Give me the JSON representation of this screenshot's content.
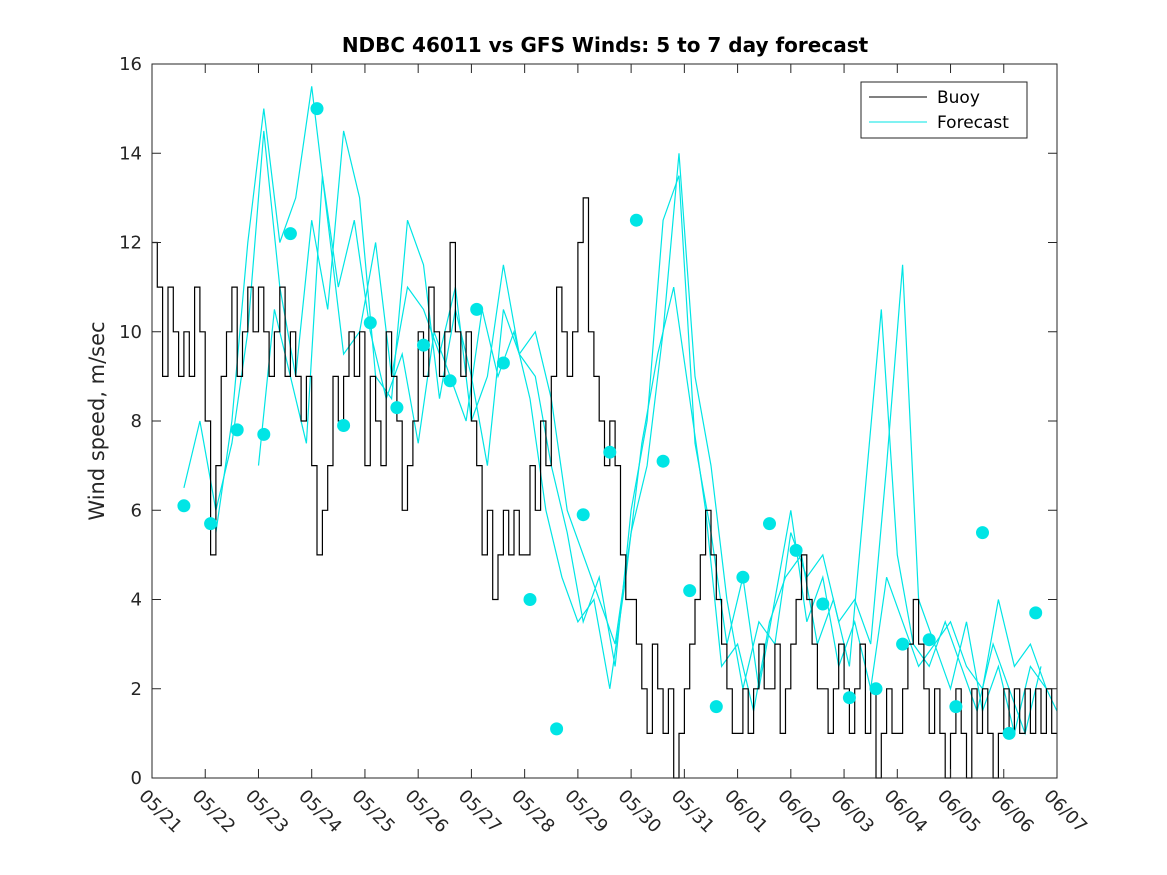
{
  "chart_data": {
    "type": "line",
    "title": "NDBC 46011 vs GFS Winds: 5 to 7 day forecast",
    "xlabel": "",
    "ylabel": "Wind speed, m/sec",
    "xlim": [
      "05/21",
      "06/07"
    ],
    "ylim": [
      0,
      16
    ],
    "yticks": [
      "0",
      "2",
      "4",
      "6",
      "8",
      "10",
      "12",
      "14",
      "16"
    ],
    "xticks": [
      "05/21",
      "05/22",
      "05/23",
      "05/24",
      "05/25",
      "05/26",
      "05/27",
      "05/28",
      "05/29",
      "05/30",
      "05/31",
      "06/01",
      "06/02",
      "06/03",
      "06/04",
      "06/05",
      "06/06",
      "06/07"
    ],
    "grid": false,
    "legend": {
      "position": "top-right",
      "entries": [
        "Buoy",
        "Forecast"
      ]
    },
    "colors": {
      "buoy": "#000000",
      "forecast": "#00e5e5"
    },
    "series": [
      {
        "name": "Buoy",
        "x": [
          0.0,
          0.1,
          0.2,
          0.3,
          0.4,
          0.5,
          0.6,
          0.7,
          0.8,
          0.9,
          1.0,
          1.1,
          1.2,
          1.3,
          1.4,
          1.5,
          1.6,
          1.7,
          1.8,
          1.9,
          2.0,
          2.1,
          2.2,
          2.3,
          2.4,
          2.5,
          2.6,
          2.7,
          2.8,
          2.9,
          3.0,
          3.1,
          3.2,
          3.3,
          3.4,
          3.5,
          3.6,
          3.7,
          3.8,
          3.9,
          4.0,
          4.1,
          4.2,
          4.3,
          4.4,
          4.5,
          4.6,
          4.7,
          4.8,
          4.9,
          5.0,
          5.1,
          5.2,
          5.3,
          5.4,
          5.5,
          5.6,
          5.7,
          5.8,
          5.9,
          6.0,
          6.1,
          6.2,
          6.3,
          6.4,
          6.5,
          6.6,
          6.7,
          6.8,
          6.9,
          7.0,
          7.1,
          7.2,
          7.3,
          7.4,
          7.5,
          7.6,
          7.7,
          7.8,
          7.9,
          8.0,
          8.1,
          8.2,
          8.3,
          8.4,
          8.5,
          8.6,
          8.7,
          8.8,
          8.9,
          9.0,
          9.1,
          9.2,
          9.3,
          9.4,
          9.5,
          9.6,
          9.7,
          9.8,
          9.9,
          10.0,
          10.1,
          10.2,
          10.3,
          10.4,
          10.5,
          10.6,
          10.7,
          10.8,
          10.9,
          11.0,
          11.1,
          11.2,
          11.3,
          11.4,
          11.5,
          11.6,
          11.7,
          11.8,
          11.9,
          12.0,
          12.1,
          12.2,
          12.3,
          12.4,
          12.5,
          12.6,
          12.7,
          12.8,
          12.9,
          13.0,
          13.1,
          13.2,
          13.3,
          13.4,
          13.5,
          13.6,
          13.7,
          13.8,
          13.9,
          14.0,
          14.1,
          14.2,
          14.3,
          14.4,
          14.5,
          14.6,
          14.7,
          14.8,
          14.9,
          15.0,
          15.1,
          15.2,
          15.3,
          15.4,
          15.5,
          15.6,
          15.7,
          15.8,
          15.9,
          16.0,
          16.1,
          16.2,
          16.3,
          16.4,
          16.5,
          16.6,
          16.7,
          16.8,
          16.9,
          17.0
        ],
        "y": [
          12,
          11,
          9,
          11,
          10,
          9,
          10,
          9,
          11,
          10,
          8,
          5,
          7,
          9,
          10,
          11,
          9,
          10,
          11,
          10,
          11,
          10,
          9,
          10,
          11,
          9,
          10,
          9,
          8,
          9,
          7,
          5,
          6,
          7,
          9,
          8,
          9,
          10,
          9,
          10,
          7,
          9,
          8,
          7,
          10,
          9,
          8,
          6,
          7,
          8,
          10,
          9,
          11,
          10,
          9,
          10,
          12,
          10,
          9,
          10,
          8,
          7,
          5,
          6,
          4,
          5,
          6,
          5,
          6,
          5,
          5,
          7,
          6,
          8,
          7,
          9,
          11,
          10,
          9,
          10,
          12,
          13,
          10,
          9,
          8,
          7,
          8,
          7,
          5,
          4,
          4,
          3,
          2,
          1,
          3,
          2,
          1,
          2,
          0,
          1,
          2,
          3,
          4,
          5,
          6,
          5,
          4,
          3,
          2,
          1,
          1,
          2,
          1,
          2,
          3,
          2,
          2,
          3,
          1,
          2,
          3,
          4,
          5,
          4,
          3,
          2,
          2,
          1,
          2,
          3,
          2,
          1,
          2,
          3,
          1,
          2,
          0,
          1,
          2,
          1,
          1,
          2,
          3,
          4,
          3,
          2,
          1,
          2,
          1,
          0,
          1,
          2,
          1,
          0,
          2,
          1,
          2,
          1,
          0,
          1,
          2,
          1,
          2,
          1,
          2,
          1,
          2,
          1,
          2,
          1,
          1
        ]
      },
      {
        "name": "Forecast",
        "x": [
          0.6,
          0.9,
          1.2,
          1.5,
          1.8,
          2.1,
          2.4,
          2.7,
          3.0,
          3.3,
          3.6,
          3.9,
          4.2,
          4.5,
          4.8,
          5.1,
          5.4,
          5.7,
          6.0,
          6.3,
          6.6,
          6.9,
          7.2,
          7.5,
          7.8,
          8.1,
          8.4,
          8.7,
          9.0,
          9.3,
          9.6,
          9.9,
          10.2,
          10.5,
          10.8,
          11.1,
          11.4,
          11.7,
          12.0,
          12.3,
          12.6,
          12.9,
          13.2,
          13.5,
          13.8,
          14.1,
          14.4,
          14.7,
          15.0,
          15.3,
          15.6,
          15.9,
          16.2,
          16.5,
          16.8,
          17.0
        ],
        "y": [
          6.5,
          8.0,
          6.0,
          7.5,
          10.0,
          14.5,
          11.0,
          9.0,
          12.5,
          10.5,
          14.5,
          13.0,
          9.0,
          8.5,
          12.5,
          11.5,
          8.5,
          10.5,
          9.0,
          7.0,
          10.5,
          9.5,
          10.0,
          8.5,
          6.0,
          5.0,
          4.0,
          3.0,
          5.5,
          7.0,
          10.0,
          14.0,
          9.0,
          7.0,
          4.0,
          2.0,
          3.5,
          3.0,
          5.5,
          4.5,
          5.0,
          3.5,
          4.0,
          3.0,
          7.0,
          11.5,
          4.0,
          3.0,
          3.5,
          2.5,
          2.0,
          4.0,
          2.5,
          3.0,
          2.0,
          1.5
        ]
      },
      {
        "name": "Forecast",
        "x": [
          1.2,
          1.5,
          1.8,
          2.1,
          2.4,
          2.7,
          3.0,
          3.3,
          3.6,
          3.9,
          4.2,
          4.5,
          4.8,
          5.1,
          5.4,
          5.7,
          6.0,
          6.3,
          6.6,
          6.9,
          7.2,
          7.5,
          7.8,
          8.1,
          8.4,
          8.7,
          9.0,
          9.3,
          9.6,
          9.9,
          10.2,
          10.5,
          10.8,
          11.1,
          11.4,
          11.7,
          12.0,
          12.3,
          12.6,
          12.9,
          13.2,
          13.5,
          13.8,
          14.1,
          14.4,
          14.7,
          15.0,
          15.3,
          15.6,
          15.9,
          16.2,
          16.5,
          16.8
        ],
        "y": [
          5.5,
          8.0,
          12.0,
          15.0,
          12.0,
          13.0,
          15.5,
          12.5,
          9.5,
          10.0,
          12.0,
          9.0,
          11.0,
          10.5,
          9.5,
          11.0,
          8.0,
          9.0,
          11.5,
          9.5,
          9.0,
          7.0,
          5.5,
          3.5,
          4.5,
          2.5,
          6.0,
          8.0,
          12.5,
          13.5,
          7.5,
          5.5,
          3.0,
          4.5,
          2.0,
          4.0,
          6.0,
          3.5,
          4.5,
          2.5,
          3.5,
          2.0,
          4.5,
          3.5,
          2.5,
          3.0,
          2.0,
          3.5,
          1.5,
          2.5,
          1.0,
          2.5,
          2.0
        ]
      },
      {
        "name": "Forecast",
        "x": [
          2.0,
          2.3,
          2.6,
          2.9,
          3.2,
          3.5,
          3.8,
          4.1,
          4.4,
          4.7,
          5.0,
          5.3,
          5.6,
          5.9,
          6.2,
          6.5,
          6.8,
          7.1,
          7.4,
          7.7,
          8.0,
          8.3,
          8.6,
          8.9,
          9.2,
          9.5,
          9.8,
          10.1,
          10.4,
          10.7,
          11.0,
          11.3,
          11.6,
          11.9,
          12.2,
          12.5,
          12.8,
          13.1,
          13.4,
          13.7,
          14.0,
          14.3,
          14.6,
          14.9,
          15.2,
          15.5,
          15.8,
          16.1,
          16.4,
          16.7
        ],
        "y": [
          7.0,
          10.5,
          9.0,
          7.5,
          13.5,
          11.0,
          12.5,
          10.0,
          8.5,
          9.5,
          7.5,
          10.0,
          9.0,
          8.0,
          10.5,
          9.0,
          10.0,
          8.5,
          6.0,
          4.5,
          3.5,
          4.0,
          2.0,
          4.5,
          7.5,
          9.5,
          11.0,
          8.5,
          6.0,
          2.5,
          3.0,
          1.5,
          3.5,
          4.5,
          5.0,
          3.0,
          4.0,
          2.5,
          6.5,
          10.5,
          5.0,
          3.0,
          2.5,
          3.5,
          2.5,
          1.5,
          3.0,
          2.0,
          1.0,
          2.5
        ]
      }
    ],
    "markers": {
      "x": [
        0.6,
        1.1,
        1.6,
        2.1,
        2.6,
        3.1,
        3.6,
        4.1,
        4.6,
        5.1,
        5.6,
        6.1,
        6.6,
        7.1,
        7.6,
        8.1,
        8.6,
        9.1,
        9.6,
        10.1,
        10.6,
        11.1,
        11.6,
        12.1,
        12.6,
        13.1,
        13.6,
        14.1,
        14.6,
        15.1,
        15.6,
        16.1,
        16.6
      ],
      "y": [
        6.1,
        5.7,
        7.8,
        7.7,
        12.2,
        15.0,
        7.9,
        10.2,
        8.3,
        9.7,
        8.9,
        10.5,
        9.3,
        4.0,
        1.1,
        5.9,
        7.3,
        12.5,
        7.1,
        4.2,
        1.6,
        4.5,
        5.7,
        5.1,
        3.9,
        1.8,
        2.0,
        3.0,
        3.1,
        1.6,
        5.5,
        1.0,
        3.7
      ]
    }
  }
}
